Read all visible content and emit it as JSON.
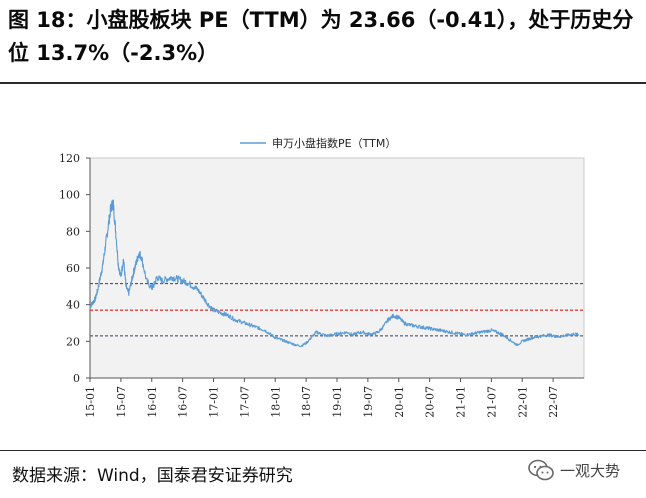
{
  "title": "图 18：小盘股板块 PE（TTM）为 23.66（-0.41），处于历史分位 13.7%（-2.3%）",
  "source": "数据来源：Wind，国泰君安证券研究",
  "watermark": "一观大势",
  "colors": {
    "line": "#5b9bd5",
    "median": "#e83b3b",
    "band": "#3b3b55",
    "plot_bg": "#f2f2f2"
  },
  "chart_data": {
    "type": "line",
    "legend": "申万小盘指数PE（TTM）",
    "legend_position": "top-center",
    "ylim": [
      0,
      120
    ],
    "yticks": [
      0,
      20,
      40,
      60,
      80,
      100,
      120
    ],
    "xticks": [
      "15-01",
      "15-07",
      "16-01",
      "16-07",
      "17-01",
      "17-07",
      "18-01",
      "18-07",
      "19-01",
      "19-07",
      "20-01",
      "20-07",
      "21-01",
      "21-07",
      "22-01",
      "22-07"
    ],
    "x_range": [
      "2015-01",
      "2022-12"
    ],
    "reference_lines": [
      {
        "name": "upper-std",
        "value": 51.5,
        "style": "dashed"
      },
      {
        "name": "median",
        "value": 37,
        "style": "dashed"
      },
      {
        "name": "lower-std",
        "value": 23,
        "style": "dashed"
      }
    ],
    "series": [
      {
        "name": "申万小盘指数PE（TTM）",
        "x": [
          0,
          0.5,
          1,
          1.5,
          2,
          2.5,
          3,
          3.5,
          4,
          4.5,
          5,
          5.5,
          6,
          6.5,
          7,
          7.5,
          8,
          8.5,
          9,
          9.5,
          10,
          11,
          12,
          12.5,
          13,
          14,
          15,
          16,
          17,
          18,
          19,
          20,
          21,
          22,
          23,
          24,
          25,
          26,
          27,
          28,
          29,
          30,
          31,
          32,
          33,
          34,
          35,
          36,
          37,
          38,
          39,
          40,
          41,
          42,
          43,
          44,
          45,
          46,
          47,
          48,
          49,
          50,
          51,
          52,
          53,
          54,
          55,
          56,
          57,
          58,
          59,
          60,
          61,
          62,
          63,
          64,
          65,
          66,
          67,
          68,
          69,
          70,
          71,
          72,
          73,
          74,
          75,
          76,
          77,
          78,
          79,
          80,
          81,
          82,
          83,
          84,
          85,
          86,
          87,
          88,
          89,
          90,
          91,
          92,
          93,
          94,
          95
        ],
        "values": [
          39,
          41,
          43,
          48,
          55,
          62,
          72,
          82,
          92,
          96,
          80,
          62,
          55,
          65,
          50,
          46,
          52,
          58,
          63,
          68,
          66,
          53,
          49,
          51,
          55,
          53,
          54,
          55,
          54,
          53,
          52,
          50,
          48,
          44,
          40,
          37,
          36,
          35,
          34,
          32,
          31,
          30,
          29,
          28,
          27,
          26,
          24,
          22,
          21,
          20,
          19,
          18,
          17.5,
          19,
          22,
          25,
          24,
          23,
          23.5,
          24,
          24.5,
          25,
          23.5,
          24.5,
          25,
          24,
          24,
          25,
          28,
          32,
          34,
          33,
          30,
          29,
          28.5,
          28,
          27.5,
          27,
          26.5,
          26,
          25.5,
          25,
          24.5,
          24,
          23.5,
          24,
          24.5,
          25,
          25.5,
          26,
          25,
          24,
          22,
          20,
          18,
          20,
          21,
          22,
          22.5,
          23,
          23.5,
          23,
          22.5,
          23,
          23.5,
          24,
          23.66
        ]
      }
    ]
  }
}
